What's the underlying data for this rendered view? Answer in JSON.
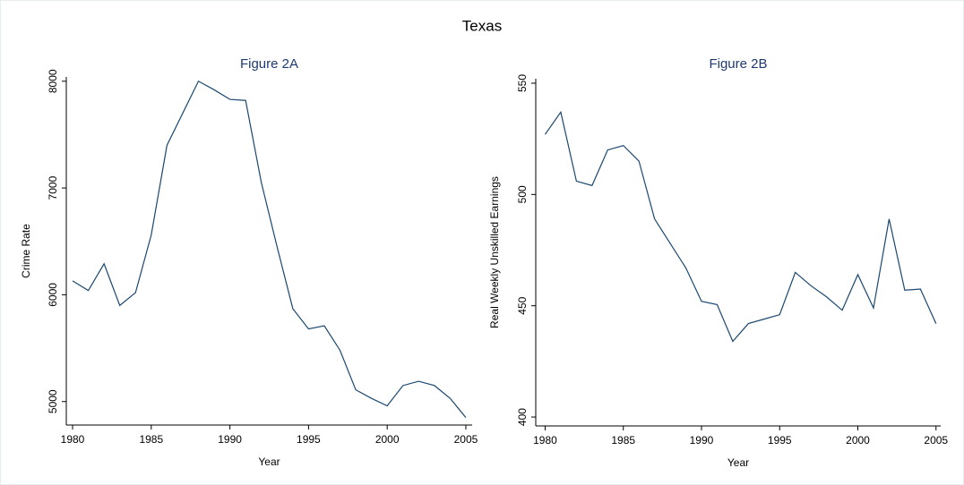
{
  "title": "Texas",
  "chart_data": [
    {
      "type": "line",
      "title": "Figure 2A",
      "x_label": "Year",
      "y_label": "Crime Rate",
      "x": [
        1980,
        1981,
        1982,
        1983,
        1984,
        1985,
        1986,
        1987,
        1988,
        1989,
        1990,
        1991,
        1992,
        1993,
        1994,
        1995,
        1996,
        1997,
        1998,
        1999,
        2000,
        2001,
        2002,
        2003,
        2004,
        2005
      ],
      "series": [
        {
          "name": "Crime Rate",
          "color": "#1a476f",
          "values": [
            6130,
            6040,
            6290,
            5900,
            6020,
            6560,
            7400,
            7700,
            8000,
            7920,
            7830,
            7820,
            7050,
            6450,
            5870,
            5680,
            5710,
            5480,
            5110,
            5030,
            4960,
            5150,
            5190,
            5150,
            5030,
            4850
          ]
        }
      ],
      "xlim": [
        1979.6,
        2005.4
      ],
      "xticks": [
        1980,
        1985,
        1990,
        1995,
        2000,
        2005
      ],
      "ylim": [
        4780,
        8040
      ],
      "yticks": [
        5000,
        6000,
        7000,
        8000
      ],
      "grid": false
    },
    {
      "type": "line",
      "title": "Figure 2B",
      "x_label": "Year",
      "y_label": "Real Weekly Unskilled Earnings",
      "x": [
        1980,
        1981,
        1982,
        1983,
        1984,
        1985,
        1986,
        1987,
        1988,
        1989,
        1990,
        1991,
        1992,
        1993,
        1994,
        1995,
        1996,
        1997,
        1998,
        1999,
        2000,
        2001,
        2002,
        2003,
        2004,
        2005
      ],
      "series": [
        {
          "name": "Real Weekly Unskilled Earnings",
          "color": "#1a476f",
          "values": [
            527,
            537,
            506,
            504,
            520,
            522,
            515,
            489,
            478,
            467,
            452,
            450.5,
            434,
            442,
            444,
            446,
            465,
            459,
            454,
            448,
            464,
            449,
            489,
            457,
            457.5,
            442
          ]
        }
      ],
      "xlim": [
        1979.4,
        2005.3
      ],
      "xticks": [
        1980,
        1985,
        1990,
        1995,
        2000,
        2005
      ],
      "ylim": [
        396,
        552
      ],
      "yticks": [
        400,
        450,
        500,
        550
      ],
      "grid": false
    }
  ]
}
